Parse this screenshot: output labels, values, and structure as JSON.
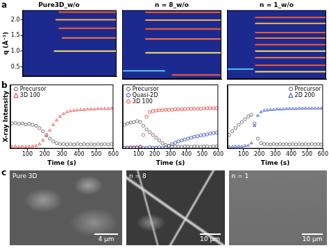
{
  "panel_labels": [
    "a",
    "b",
    "c"
  ],
  "chart_data": [
    {
      "type": "heatmap",
      "title": "Pure3D_w/o",
      "y_label": "q (Å⁻¹)",
      "xlim": [
        0,
        600
      ],
      "ylim": [
        0.2,
        2.3
      ],
      "yticks": [
        0.5,
        {
          "value": 1,
          "label": "1.0"
        },
        1.5,
        {
          "value": 2,
          "label": "2.0"
        }
      ],
      "tick_labels": "y",
      "grid": false,
      "bands": [
        {
          "q": 2.24,
          "start": 230,
          "end": 600,
          "color": "#ff5a2a"
        },
        {
          "q": 2.0,
          "start": 210,
          "end": 600,
          "color": "#ffb347"
        },
        {
          "q": 1.73,
          "start": 230,
          "end": 600,
          "color": "#ff5a2a"
        },
        {
          "q": 1.42,
          "start": 250,
          "end": 600,
          "color": "#ff7a3a"
        },
        {
          "q": 1.0,
          "start": 200,
          "end": 600,
          "color": "#ffe066"
        }
      ]
    },
    {
      "type": "heatmap",
      "title": "n = 8_w/o",
      "xlim": [
        0,
        600
      ],
      "ylim": [
        0.2,
        2.3
      ],
      "tick_labels": false,
      "grid": false,
      "bands": [
        {
          "q": 2.24,
          "start": 140,
          "end": 600,
          "color": "#ff5a2a"
        },
        {
          "q": 2.0,
          "start": 140,
          "end": 600,
          "color": "#ffb347"
        },
        {
          "q": 1.73,
          "start": 140,
          "end": 600,
          "color": "#ff5a2a"
        },
        {
          "q": 1.42,
          "start": 140,
          "end": 600,
          "color": "#ff7a3a"
        },
        {
          "q": 1.0,
          "start": 140,
          "end": 600,
          "color": "#ffe066"
        },
        {
          "q": 0.45,
          "start": 0,
          "end": 260,
          "color": "#58c8f0"
        },
        {
          "q": 0.32,
          "start": 300,
          "end": 600,
          "color": "#ff5a2a"
        }
      ]
    },
    {
      "type": "heatmap",
      "title": "n = 1_w/o",
      "xlim": [
        0,
        600
      ],
      "ylim": [
        0.2,
        2.3
      ],
      "tick_labels": false,
      "grid": false,
      "bands": [
        {
          "q": 2.08,
          "start": 170,
          "end": 600,
          "color": "#ff5a2a"
        },
        {
          "q": 1.9,
          "start": 170,
          "end": 600,
          "color": "#ffb347"
        },
        {
          "q": 1.62,
          "start": 170,
          "end": 600,
          "color": "#ff5a2a"
        },
        {
          "q": 1.45,
          "start": 170,
          "end": 600,
          "color": "#ff7a3a"
        },
        {
          "q": 1.25,
          "start": 170,
          "end": 600,
          "color": "#ff5a2a"
        },
        {
          "q": 1.05,
          "start": 170,
          "end": 600,
          "color": "#ffe066"
        },
        {
          "q": 0.85,
          "start": 170,
          "end": 600,
          "color": "#ff7a3a"
        },
        {
          "q": 0.62,
          "start": 170,
          "end": 600,
          "color": "#ff5a2a"
        },
        {
          "q": 0.42,
          "start": 170,
          "end": 600,
          "color": "#ffe066"
        },
        {
          "q": 0.5,
          "start": 0,
          "end": 160,
          "color": "#58c8f0"
        }
      ]
    },
    {
      "type": "scatter",
      "y_label": "X-ray Intensity",
      "x_label": "Time (s)",
      "xlim": [
        0,
        600
      ],
      "ylim": [
        0,
        1.4
      ],
      "xticks": [
        100,
        200,
        300,
        400,
        500,
        600
      ],
      "tick_labels": "x",
      "grid": false,
      "legend": "upper left",
      "x": [
        10,
        30,
        50,
        70,
        90,
        110,
        130,
        150,
        170,
        190,
        210,
        230,
        250,
        270,
        290,
        310,
        330,
        350,
        370,
        390,
        410,
        430,
        450,
        470,
        490,
        510,
        530,
        550,
        570,
        590
      ],
      "series": [
        {
          "name": "Precursor",
          "color": "#555555",
          "marker": "circle",
          "values": [
            0.55,
            0.56,
            0.54,
            0.55,
            0.53,
            0.54,
            0.52,
            0.5,
            0.45,
            0.38,
            0.3,
            0.22,
            0.16,
            0.12,
            0.1,
            0.1,
            0.09,
            0.1,
            0.09,
            0.1,
            0.09,
            0.1,
            0.09,
            0.1,
            0.09,
            0.1,
            0.09,
            0.1,
            0.09,
            0.1
          ]
        },
        {
          "name": "3D 100",
          "color": "#e8322a",
          "marker": "triangle",
          "values": [
            0.04,
            0.05,
            0.04,
            0.05,
            0.04,
            0.05,
            0.05,
            0.06,
            0.1,
            0.18,
            0.28,
            0.4,
            0.52,
            0.62,
            0.7,
            0.76,
            0.8,
            0.82,
            0.83,
            0.84,
            0.85,
            0.85,
            0.86,
            0.86,
            0.86,
            0.87,
            0.87,
            0.87,
            0.87,
            0.88
          ]
        }
      ]
    },
    {
      "type": "scatter",
      "x_label": "Time (s)",
      "xlim": [
        0,
        600
      ],
      "ylim": [
        0,
        1.4
      ],
      "xticks": [
        100,
        200,
        300,
        400,
        500,
        600
      ],
      "tick_labels": "x",
      "grid": false,
      "legend": "upper left",
      "x": [
        10,
        30,
        50,
        70,
        90,
        110,
        130,
        150,
        170,
        190,
        210,
        230,
        250,
        270,
        290,
        310,
        330,
        350,
        370,
        390,
        410,
        430,
        450,
        470,
        490,
        510,
        530,
        550,
        570,
        590
      ],
      "series": [
        {
          "name": "Precursor",
          "color": "#555555",
          "marker": "circle",
          "values": [
            0.52,
            0.55,
            0.57,
            0.58,
            0.6,
            0.58,
            0.5,
            0.42,
            0.36,
            0.3,
            0.24,
            0.18,
            0.12,
            0.08,
            0.06,
            0.05,
            0.05,
            0.05,
            0.04,
            0.05,
            0.05,
            0.04,
            0.05,
            0.05,
            0.04,
            0.05,
            0.05,
            0.04,
            0.05,
            0.05
          ]
        },
        {
          "name": "Quasi-2D",
          "color": "#1f3fbf",
          "marker": "circle",
          "values": [
            0.02,
            0.02,
            0.03,
            0.02,
            0.02,
            0.03,
            0.02,
            0.02,
            0.03,
            0.02,
            0.02,
            0.03,
            0.02,
            0.03,
            0.06,
            0.1,
            0.13,
            0.16,
            0.18,
            0.2,
            0.22,
            0.24,
            0.26,
            0.27,
            0.29,
            0.3,
            0.31,
            0.33,
            0.34,
            0.35
          ]
        },
        {
          "name": "3D 100",
          "color": "#e8322a",
          "marker": "circle",
          "values": [
            0.02,
            0.02,
            0.02,
            0.03,
            0.03,
            0.05,
            0.3,
            0.7,
            0.8,
            0.82,
            0.83,
            0.84,
            0.84,
            0.85,
            0.85,
            0.85,
            0.86,
            0.86,
            0.86,
            0.86,
            0.87,
            0.87,
            0.87,
            0.87,
            0.87,
            0.88,
            0.88,
            0.88,
            0.88,
            0.88
          ]
        }
      ]
    },
    {
      "type": "scatter",
      "x_label": "Time (s)",
      "xlim": [
        0,
        600
      ],
      "ylim": [
        0,
        1.4
      ],
      "xticks": [
        100,
        200,
        300,
        400,
        500,
        600
      ],
      "tick_labels": "x",
      "grid": false,
      "legend": "upper right",
      "x": [
        10,
        30,
        50,
        70,
        90,
        110,
        130,
        150,
        170,
        190,
        210,
        230,
        250,
        270,
        290,
        310,
        330,
        350,
        370,
        390,
        410,
        430,
        450,
        470,
        490,
        510,
        530,
        550,
        570,
        590
      ],
      "series": [
        {
          "name": "Precursor",
          "color": "#555555",
          "marker": "circle",
          "values": [
            0.3,
            0.38,
            0.45,
            0.52,
            0.58,
            0.64,
            0.7,
            0.74,
            0.55,
            0.22,
            0.12,
            0.1,
            0.1,
            0.09,
            0.1,
            0.09,
            0.1,
            0.09,
            0.1,
            0.09,
            0.1,
            0.09,
            0.1,
            0.09,
            0.1,
            0.09,
            0.1,
            0.09,
            0.1,
            0.09
          ]
        },
        {
          "name": "2D 200",
          "color": "#1f3fbf",
          "marker": "triangle",
          "values": [
            0.04,
            0.04,
            0.05,
            0.05,
            0.05,
            0.06,
            0.07,
            0.12,
            0.5,
            0.72,
            0.8,
            0.83,
            0.84,
            0.85,
            0.85,
            0.86,
            0.86,
            0.86,
            0.87,
            0.87,
            0.87,
            0.87,
            0.88,
            0.88,
            0.88,
            0.88,
            0.88,
            0.88,
            0.88,
            0.88
          ]
        }
      ]
    }
  ],
  "images": [
    {
      "label": "Pure 3D",
      "scale_bar": "4 μm"
    },
    {
      "label": "n = 8",
      "scale_bar": "10 μm"
    },
    {
      "label": "n = 1",
      "scale_bar": "10 μm"
    }
  ]
}
